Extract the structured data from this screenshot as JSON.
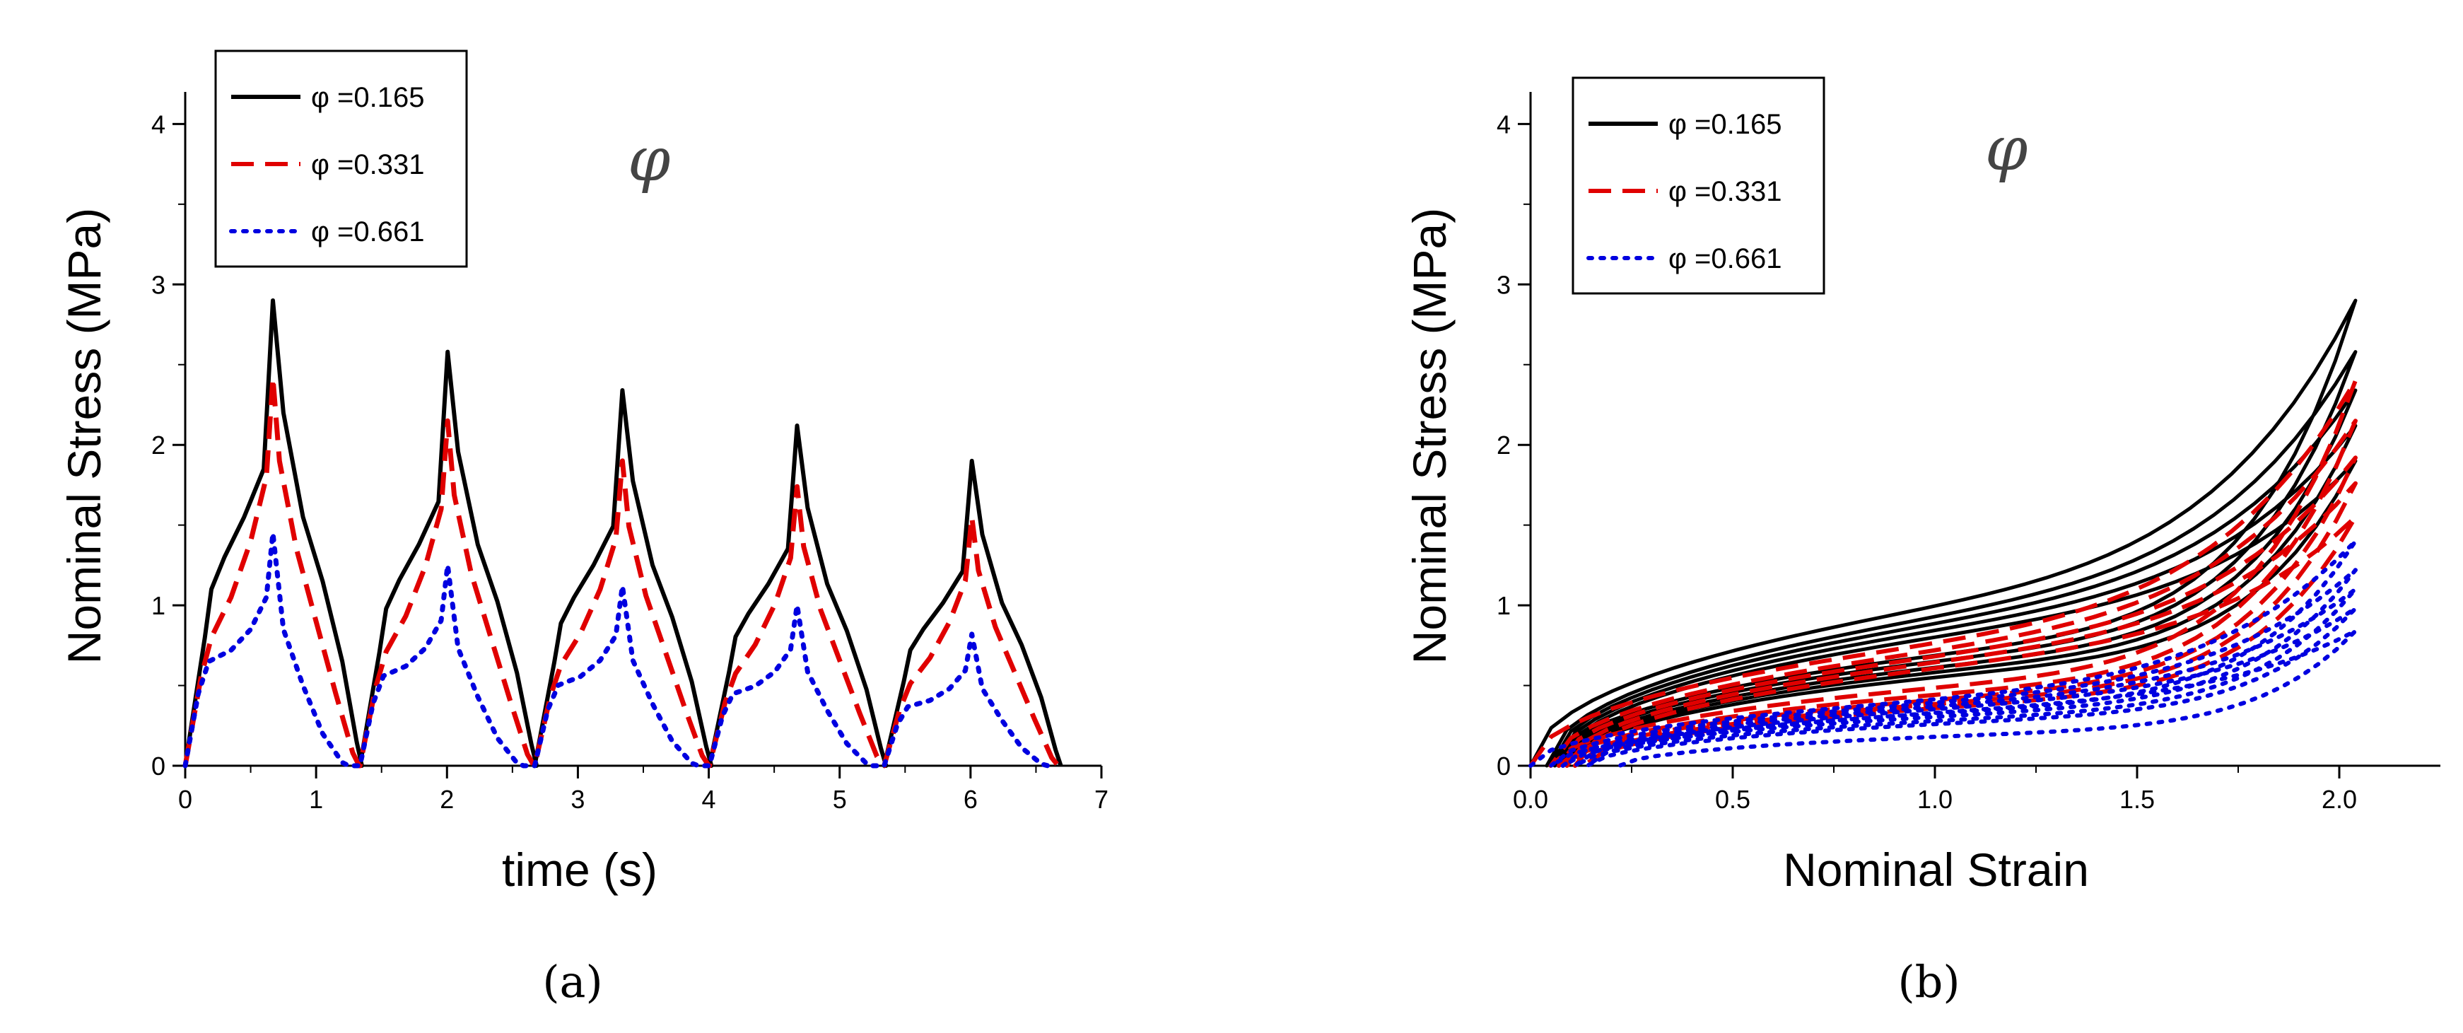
{
  "chart_data": [
    {
      "type": "line",
      "panel": "(a)",
      "xlabel": "time (s)",
      "ylabel": "Nominal Stress (MPa)",
      "xlim": [
        0,
        7
      ],
      "ylim": [
        0,
        4.2
      ],
      "xticks": [
        "0",
        "1",
        "2",
        "3",
        "4",
        "5",
        "6",
        "7"
      ],
      "yticks": [
        "0",
        "1",
        "2",
        "3",
        "4"
      ],
      "legend_position": "top-left",
      "annotation": "φ",
      "cycle_period": 1.335,
      "series": [
        {
          "name": "φ =0.165",
          "color": "#000000",
          "style": "solid",
          "peaks": [
            2.9,
            2.58,
            2.34,
            2.12,
            1.9
          ],
          "x": [
            0,
            0.15,
            0.2,
            0.3,
            0.45,
            0.6,
            0.67,
            0.75,
            0.9,
            1.05,
            1.2,
            1.31,
            1.35
          ],
          "y": [
            0,
            0.8,
            1.1,
            1.3,
            1.55,
            1.85,
            2.9,
            2.2,
            1.55,
            1.15,
            0.65,
            0.15,
            0
          ]
        },
        {
          "name": "φ =0.331",
          "color": "#e00000",
          "style": "dashed",
          "peaks": [
            2.42,
            2.15,
            1.9,
            1.74,
            1.55
          ],
          "x": [
            0,
            0.12,
            0.2,
            0.35,
            0.5,
            0.62,
            0.67,
            0.72,
            0.85,
            1.0,
            1.15,
            1.28,
            1.33
          ],
          "y": [
            0,
            0.55,
            0.8,
            1.05,
            1.4,
            1.8,
            2.42,
            1.9,
            1.35,
            0.9,
            0.45,
            0.08,
            0
          ]
        },
        {
          "name": "φ =0.661",
          "color": "#0000e0",
          "style": "dotted",
          "peaks": [
            1.45,
            1.25,
            1.12,
            1.0,
            0.82
          ],
          "x": [
            0,
            0.1,
            0.18,
            0.35,
            0.5,
            0.62,
            0.67,
            0.75,
            0.9,
            1.05,
            1.2,
            1.25
          ],
          "y": [
            0,
            0.45,
            0.65,
            0.72,
            0.85,
            1.05,
            1.45,
            0.85,
            0.5,
            0.2,
            0.02,
            0
          ]
        }
      ]
    },
    {
      "type": "line",
      "panel": "(b)",
      "xlabel": "Nominal Strain",
      "ylabel": "Nominal Stress (MPa)",
      "xlim": [
        0,
        2.25
      ],
      "ylim": [
        0,
        4.2
      ],
      "xticks": [
        "0.0",
        "0.5",
        "1.0",
        "1.5",
        "2.0"
      ],
      "yticks": [
        "0",
        "1",
        "2",
        "3",
        "4"
      ],
      "legend_position": "top-left",
      "annotation": "φ",
      "series": [
        {
          "name": "φ =0.165",
          "color": "#000000",
          "style": "solid",
          "loading_peaks": [
            2.9,
            2.58,
            2.34,
            2.12,
            1.9
          ],
          "loading_mid": [
            1.5,
            1.42,
            1.36,
            1.3,
            1.24
          ],
          "unloading_mid": [
            1.16,
            1.1,
            1.04,
            0.99,
            0.94
          ],
          "unload_end_x": [
            0.04,
            0.05,
            0.06,
            0.07,
            0.08
          ]
        },
        {
          "name": "φ =0.331",
          "color": "#e00000",
          "style": "dashed",
          "loading_peaks": [
            2.4,
            2.15,
            1.92,
            1.76,
            1.55
          ],
          "loading_mid": [
            1.15,
            1.1,
            1.05,
            1.0,
            0.95
          ],
          "unloading_mid": [
            0.82,
            0.75,
            0.7,
            0.66,
            0.62
          ],
          "unload_end_x": [
            0.05,
            0.07,
            0.09,
            0.11,
            0.13
          ]
        },
        {
          "name": "φ =0.661",
          "color": "#0000e0",
          "style": "dotted",
          "loading_peaks": [
            1.4,
            1.22,
            1.1,
            0.98,
            0.84
          ],
          "loading_mid": [
            0.62,
            0.6,
            0.57,
            0.55,
            0.52
          ],
          "unloading_mid": [
            0.55,
            0.52,
            0.48,
            0.45,
            0.32
          ],
          "unload_end_x": [
            0.05,
            0.08,
            0.11,
            0.14,
            0.22
          ]
        }
      ]
    }
  ]
}
